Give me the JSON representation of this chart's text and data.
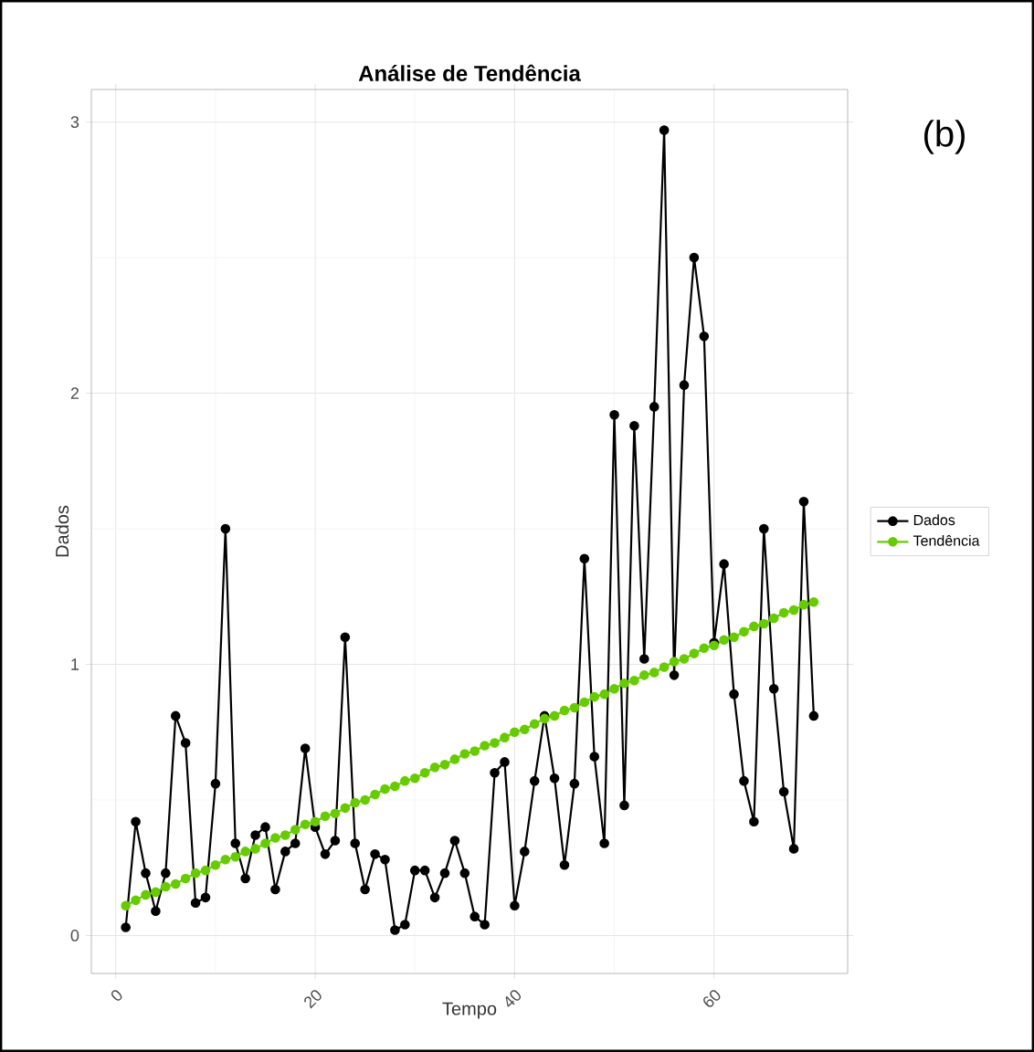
{
  "chart_data": {
    "type": "line",
    "title": "Análise de Tendência",
    "xlabel": "Tempo",
    "ylabel": "Dados",
    "annotations": [
      "(b)"
    ],
    "x": [
      1,
      2,
      3,
      4,
      5,
      6,
      7,
      8,
      9,
      10,
      11,
      12,
      13,
      14,
      15,
      16,
      17,
      18,
      19,
      20,
      21,
      22,
      23,
      24,
      25,
      26,
      27,
      28,
      29,
      30,
      31,
      32,
      33,
      34,
      35,
      36,
      37,
      38,
      39,
      40,
      41,
      42,
      43,
      44,
      45,
      46,
      47,
      48,
      49,
      50,
      51,
      52,
      53,
      54,
      55,
      56,
      57,
      58,
      59,
      60,
      61,
      62,
      63,
      64,
      65,
      66,
      67,
      68,
      69,
      70
    ],
    "series": [
      {
        "name": "Dados",
        "color": "#000000",
        "values": [
          0.03,
          0.42,
          0.23,
          0.09,
          0.23,
          0.81,
          0.71,
          0.12,
          0.14,
          0.56,
          1.5,
          0.34,
          0.21,
          0.37,
          0.4,
          0.17,
          0.31,
          0.34,
          0.69,
          0.4,
          0.3,
          0.35,
          1.1,
          0.34,
          0.17,
          0.3,
          0.28,
          0.02,
          0.04,
          0.24,
          0.24,
          0.14,
          0.23,
          0.35,
          0.23,
          0.07,
          0.04,
          0.6,
          0.64,
          0.11,
          0.31,
          0.57,
          0.81,
          0.58,
          0.26,
          0.56,
          1.39,
          0.66,
          0.34,
          1.92,
          0.48,
          1.88,
          1.02,
          1.95,
          2.97,
          0.96,
          2.03,
          2.5,
          2.21,
          1.08,
          1.37,
          0.89,
          0.57,
          0.42,
          1.5,
          0.91,
          0.53,
          0.32,
          1.6,
          0.81
        ]
      },
      {
        "name": "Tendência",
        "color": "#66cc00",
        "values": [
          0.11,
          0.13,
          0.15,
          0.16,
          0.18,
          0.19,
          0.21,
          0.23,
          0.24,
          0.26,
          0.28,
          0.29,
          0.31,
          0.32,
          0.34,
          0.36,
          0.37,
          0.39,
          0.41,
          0.42,
          0.44,
          0.45,
          0.47,
          0.49,
          0.5,
          0.52,
          0.54,
          0.55,
          0.57,
          0.58,
          0.6,
          0.62,
          0.63,
          0.65,
          0.67,
          0.68,
          0.7,
          0.71,
          0.73,
          0.75,
          0.76,
          0.78,
          0.8,
          0.81,
          0.83,
          0.84,
          0.86,
          0.88,
          0.89,
          0.91,
          0.93,
          0.94,
          0.96,
          0.97,
          0.99,
          1.01,
          1.02,
          1.04,
          1.06,
          1.07,
          1.09,
          1.1,
          1.12,
          1.14,
          1.15,
          1.17,
          1.19,
          1.2,
          1.22,
          1.23
        ]
      }
    ],
    "xlim": [
      -2.45,
      73.4
    ],
    "ylim": [
      -0.14,
      3.12
    ],
    "xticks": [
      0,
      20,
      40,
      60
    ],
    "yticks": [
      0,
      1,
      2,
      3
    ],
    "grid": true,
    "legend": "right",
    "marker": "circle",
    "line_style": "solid"
  }
}
